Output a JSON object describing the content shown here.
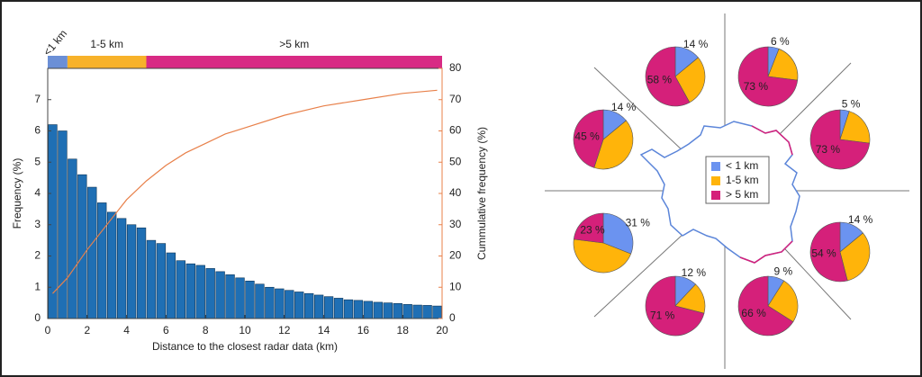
{
  "chart_data": [
    {
      "type": "histogram",
      "xlabel": "Distance to the closest radar data (km)",
      "ylabel": "Frequency (%)",
      "y2label": "Cummulative frequency (%)",
      "bins": [
        0,
        0.5,
        1,
        1.5,
        2,
        2.5,
        3,
        3.5,
        4,
        4.5,
        5,
        5.5,
        6,
        6.5,
        7,
        7.5,
        8,
        8.5,
        9,
        9.5,
        10,
        10.5,
        11,
        11.5,
        12,
        12.5,
        13,
        13.5,
        14,
        14.5,
        15,
        15.5,
        16,
        16.5,
        17,
        17.5,
        18,
        18.5,
        19,
        19.5,
        20
      ],
      "values": [
        6.2,
        6.0,
        5.1,
        4.6,
        4.2,
        3.7,
        3.4,
        3.2,
        3.0,
        2.9,
        2.5,
        2.4,
        2.1,
        1.85,
        1.75,
        1.7,
        1.6,
        1.5,
        1.4,
        1.3,
        1.2,
        1.1,
        1.0,
        0.95,
        0.9,
        0.85,
        0.8,
        0.75,
        0.7,
        0.65,
        0.6,
        0.58,
        0.55,
        0.52,
        0.5,
        0.48,
        0.45,
        0.43,
        0.42,
        0.4
      ],
      "color": "#1f6fb4",
      "line": {
        "axis": "y2",
        "color": "#e8804a",
        "x": [
          0.25,
          1,
          2,
          3,
          4,
          5,
          6,
          7,
          8,
          9,
          10,
          12,
          14,
          16,
          18,
          19.75
        ],
        "values": [
          8,
          13,
          22,
          30,
          38,
          44,
          49,
          53,
          56,
          59,
          61,
          65,
          68,
          70,
          72,
          73
        ]
      },
      "xlim": [
        0,
        20
      ],
      "xticks": [
        0,
        2,
        4,
        6,
        8,
        10,
        12,
        14,
        16,
        18,
        20
      ],
      "ylim": [
        0,
        8
      ],
      "yticks": [
        0,
        1,
        2,
        3,
        4,
        5,
        6,
        7
      ],
      "y2lim": [
        0,
        80
      ],
      "y2ticks": [
        0,
        10,
        20,
        30,
        40,
        50,
        60,
        70,
        80
      ],
      "ranges": [
        {
          "label": "<1 km",
          "start": 0,
          "end": 1,
          "color": "#6b8fd6"
        },
        {
          "label": "1-5 km",
          "start": 1,
          "end": 5,
          "color": "#f7b22a"
        },
        {
          "label": ">5 km",
          "start": 5,
          "end": 20,
          "color": "#d82a84"
        }
      ]
    },
    {
      "type": "pie",
      "categories": [
        "< 1 km",
        "1-5 km",
        "> 5 km"
      ],
      "colors": [
        "#6b93f0",
        "#ffb40a",
        "#d5207a"
      ],
      "pies": [
        {
          "values": [
            14,
            28,
            58
          ],
          "value_labels": [
            "14 %",
            null,
            "58 %"
          ]
        },
        {
          "values": [
            6,
            21,
            73
          ],
          "value_labels": [
            "6 %",
            null,
            "73 %"
          ]
        },
        {
          "values": [
            5,
            22,
            73
          ],
          "value_labels": [
            "5 %",
            null,
            "73 %"
          ]
        },
        {
          "values": [
            14,
            32,
            54
          ],
          "value_labels": [
            "14 %",
            null,
            "54 %"
          ]
        },
        {
          "values": [
            9,
            25,
            66
          ],
          "value_labels": [
            "9 %",
            null,
            "66 %"
          ]
        },
        {
          "values": [
            12,
            17,
            71
          ],
          "value_labels": [
            "12 %",
            null,
            "71 %"
          ]
        },
        {
          "values": [
            31,
            46,
            23
          ],
          "value_labels": [
            "31 %",
            null,
            "23 %"
          ]
        },
        {
          "values": [
            14,
            41,
            45
          ],
          "value_labels": [
            "14 %",
            null,
            "45 %"
          ]
        }
      ]
    }
  ]
}
